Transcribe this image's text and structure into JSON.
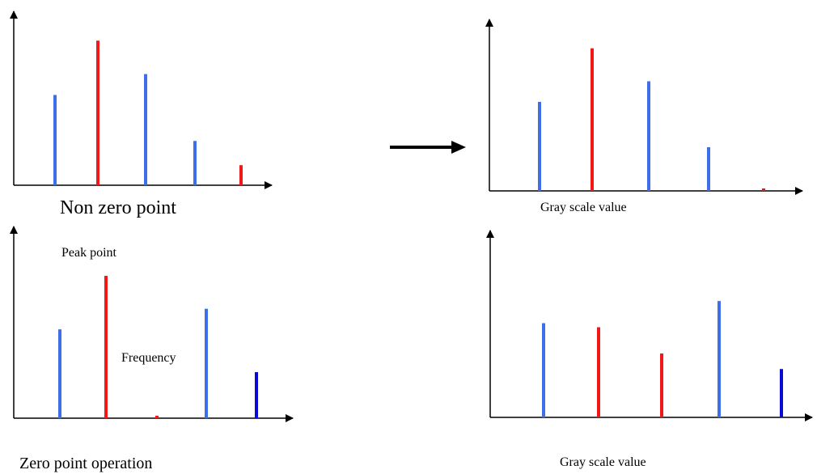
{
  "colors": {
    "axis": "#000000",
    "blue": "#3f6fe8",
    "red": "#f01818",
    "dark_blue": "#0a0ad8"
  },
  "labels": {
    "non_zero_point": "Non zero point",
    "gray_scale_top": "Gray scale value",
    "peak_point": "Peak point",
    "frequency": "Frequency",
    "zero_point_operation": "Zero point operation",
    "gray_scale_bottom": "Gray scale value"
  },
  "chart_data": [
    {
      "type": "bar",
      "title": "",
      "xlabel": "Non zero point",
      "ylabel": "",
      "ylim": [
        0,
        210
      ],
      "bars": [
        {
          "value": 108,
          "color": "blue"
        },
        {
          "value": 173,
          "color": "red"
        },
        {
          "value": 133,
          "color": "blue"
        },
        {
          "value": 53,
          "color": "blue"
        },
        {
          "value": 24,
          "color": "red"
        }
      ]
    },
    {
      "type": "bar",
      "title": "",
      "xlabel": "Gray scale value",
      "ylabel": "",
      "ylim": [
        0,
        210
      ],
      "bars": [
        {
          "value": 108,
          "color": "blue"
        },
        {
          "value": 173,
          "color": "red"
        },
        {
          "value": 133,
          "color": "blue"
        },
        {
          "value": 53,
          "color": "blue"
        },
        {
          "value": 3,
          "color": "red"
        }
      ]
    },
    {
      "type": "bar",
      "title": "",
      "xlabel": "Zero point operation",
      "ylabel": "Frequency",
      "ylim": [
        0,
        235
      ],
      "bars": [
        {
          "value": 108,
          "color": "blue"
        },
        {
          "value": 173,
          "color": "red"
        },
        {
          "value": 3,
          "color": "red"
        },
        {
          "value": 133,
          "color": "blue"
        },
        {
          "value": 56,
          "color": "dark_blue"
        }
      ]
    },
    {
      "type": "bar",
      "title": "",
      "xlabel": "Gray scale value",
      "ylabel": "",
      "ylim": [
        0,
        230
      ],
      "bars": [
        {
          "value": 115,
          "color": "blue"
        },
        {
          "value": 110,
          "color": "red"
        },
        {
          "value": 78,
          "color": "red"
        },
        {
          "value": 142,
          "color": "blue"
        },
        {
          "value": 59,
          "color": "dark_blue"
        }
      ]
    }
  ]
}
